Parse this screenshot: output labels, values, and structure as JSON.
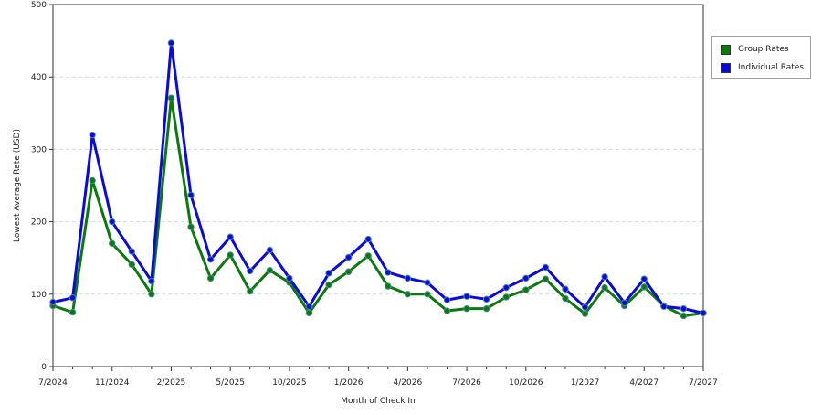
{
  "chart_data": {
    "type": "line",
    "title": "",
    "xlabel": "Month of Check In",
    "ylabel": "Lowest Average Rate (USD)",
    "ylim": [
      0,
      500
    ],
    "yticks": [
      0,
      100,
      200,
      300,
      400,
      500
    ],
    "x_tick_labels": [
      "7/2024",
      "11/2024",
      "2/2025",
      "5/2025",
      "10/2025",
      "1/2026",
      "4/2026",
      "7/2026",
      "10/2026",
      "1/2027",
      "4/2027",
      "7/2027"
    ],
    "x_tick_indices": [
      0,
      3,
      6,
      9,
      12,
      15,
      18,
      21,
      24,
      27,
      30,
      33
    ],
    "grid": "horizontal dashed",
    "legend_position": "right",
    "series": [
      {
        "name": "Group Rates",
        "color": "#0a7a0a",
        "values": [
          84,
          75,
          257,
          170,
          141,
          100,
          371,
          193,
          122,
          154,
          104,
          133,
          116,
          74,
          113,
          131,
          153,
          111,
          100,
          100,
          77,
          80,
          80,
          96,
          106,
          121,
          94,
          73,
          109,
          84,
          110,
          84,
          70,
          74
        ]
      },
      {
        "name": "Individual Rates",
        "color": "#0a0ae0",
        "values": [
          89,
          95,
          320,
          200,
          159,
          118,
          447,
          237,
          148,
          179,
          132,
          161,
          122,
          83,
          129,
          151,
          176,
          130,
          122,
          116,
          92,
          97,
          93,
          109,
          122,
          137,
          107,
          82,
          124,
          88,
          121,
          83,
          80,
          74
        ]
      }
    ]
  }
}
